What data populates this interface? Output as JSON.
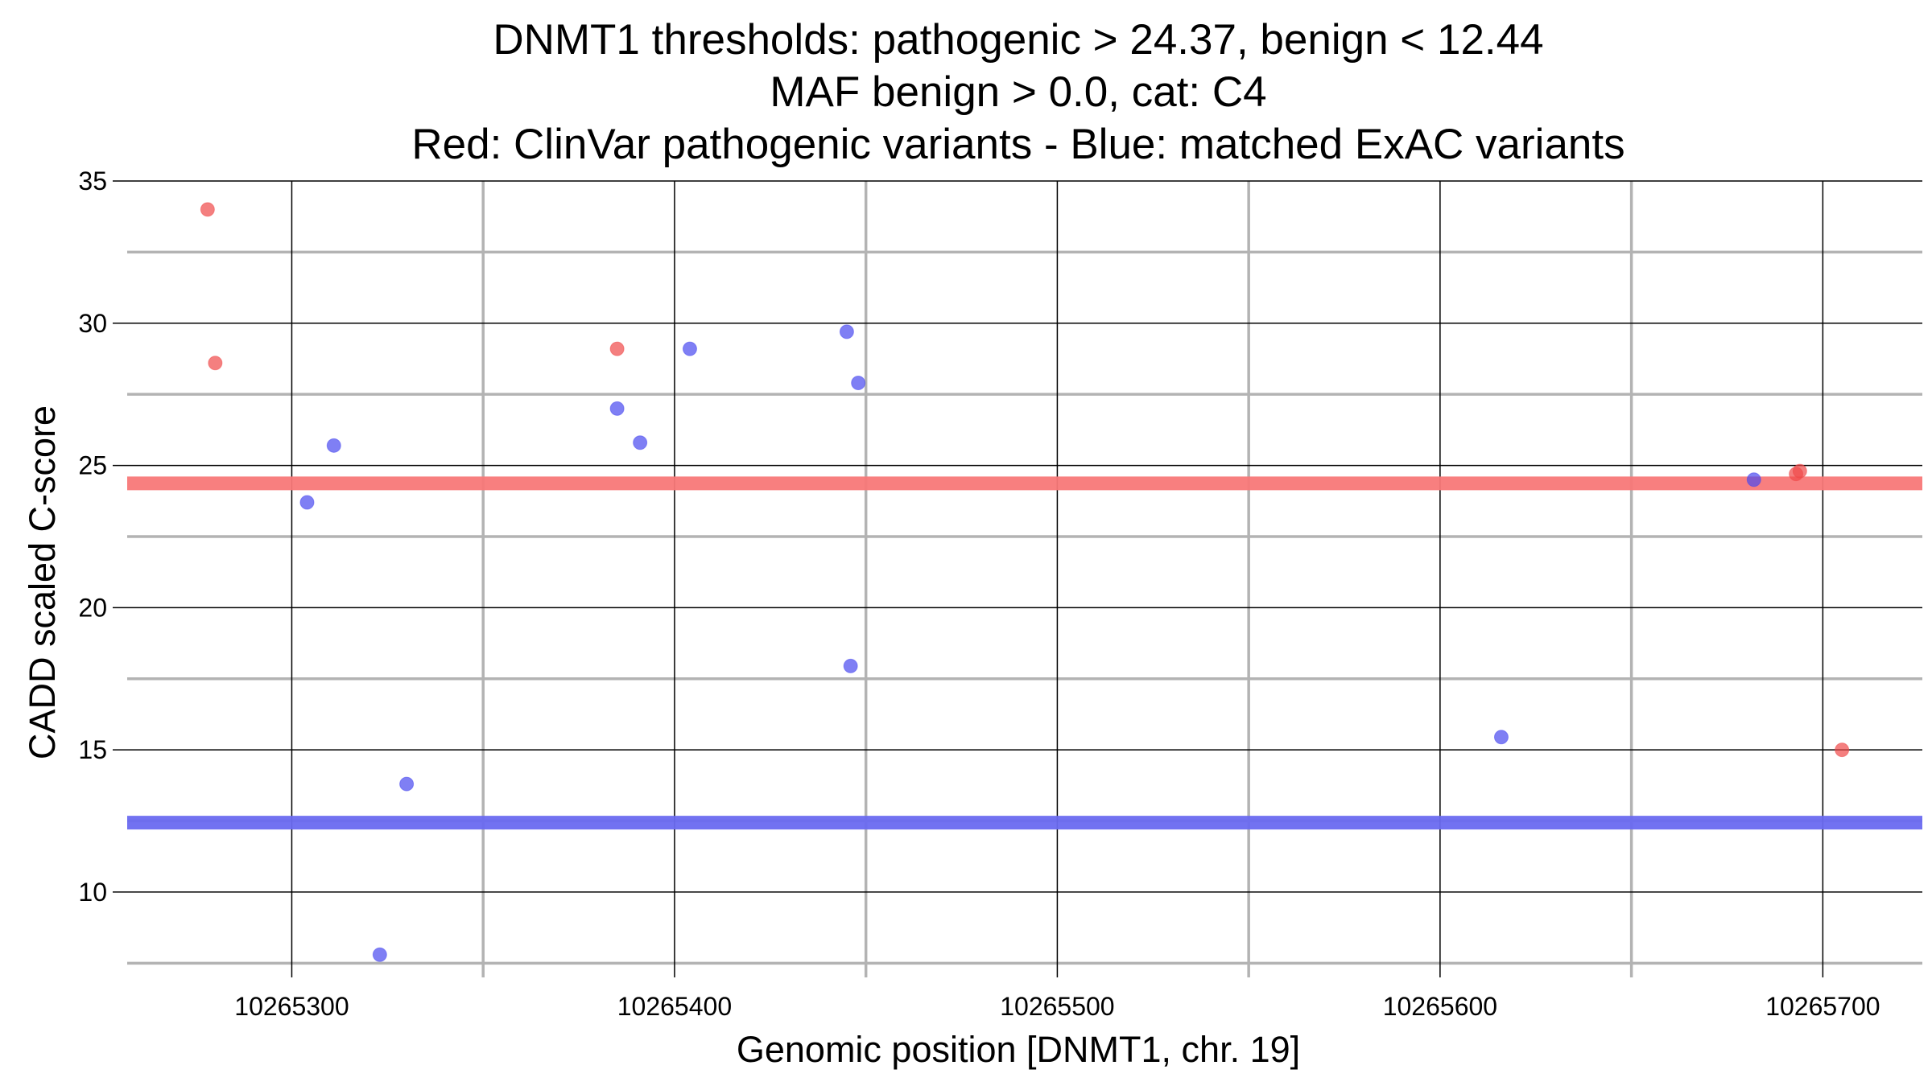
{
  "chart_data": {
    "type": "scatter",
    "title_lines": [
      "DNMT1 thresholds: pathogenic > 24.37, benign < 12.44",
      "MAF benign > 0.0, cat: C4",
      "Red: ClinVar pathogenic variants - Blue: matched ExAC variants"
    ],
    "xlabel": "Genomic position [DNMT1, chr. 19]",
    "ylabel": "CADD scaled C-score",
    "xlim": [
      10265257,
      10265726
    ],
    "ylim": [
      7.0,
      35.0
    ],
    "x_ticks": [
      10265300,
      10265400,
      10265500,
      10265600,
      10265700
    ],
    "x_tick_labels": [
      "10265300",
      "10265400",
      "10265500",
      "10265600",
      "10265700"
    ],
    "x_minor_ticks": [
      10265350,
      10265450,
      10265550,
      10265650
    ],
    "y_ticks": [
      10,
      15,
      20,
      25,
      30,
      35
    ],
    "y_tick_labels": [
      "10",
      "15",
      "20",
      "25",
      "30",
      "35"
    ],
    "y_minor_ticks": [
      7.5,
      12.5,
      17.5,
      22.5,
      27.5,
      32.5
    ],
    "thresholds": [
      {
        "name": "pathogenic",
        "value": 24.37,
        "color": "#f87878"
      },
      {
        "name": "benign",
        "value": 12.44,
        "color": "#6a6af0"
      }
    ],
    "series": [
      {
        "name": "ClinVar pathogenic variants",
        "color": "#f04848",
        "points": [
          {
            "x": 10265278,
            "y": 34.0
          },
          {
            "x": 10265280,
            "y": 28.6
          },
          {
            "x": 10265385,
            "y": 29.1
          },
          {
            "x": 10265693,
            "y": 24.7
          },
          {
            "x": 10265694,
            "y": 24.8
          },
          {
            "x": 10265705,
            "y": 15.0
          }
        ]
      },
      {
        "name": "matched ExAC variants",
        "color": "#4848f0",
        "points": [
          {
            "x": 10265304,
            "y": 23.7
          },
          {
            "x": 10265311,
            "y": 25.7
          },
          {
            "x": 10265323,
            "y": 7.8
          },
          {
            "x": 10265330,
            "y": 13.8
          },
          {
            "x": 10265385,
            "y": 27.0
          },
          {
            "x": 10265391,
            "y": 25.8
          },
          {
            "x": 10265404,
            "y": 29.1
          },
          {
            "x": 10265445,
            "y": 29.7
          },
          {
            "x": 10265446,
            "y": 17.95
          },
          {
            "x": 10265448,
            "y": 27.9
          },
          {
            "x": 10265616,
            "y": 15.45
          },
          {
            "x": 10265682,
            "y": 24.5
          }
        ]
      }
    ]
  }
}
